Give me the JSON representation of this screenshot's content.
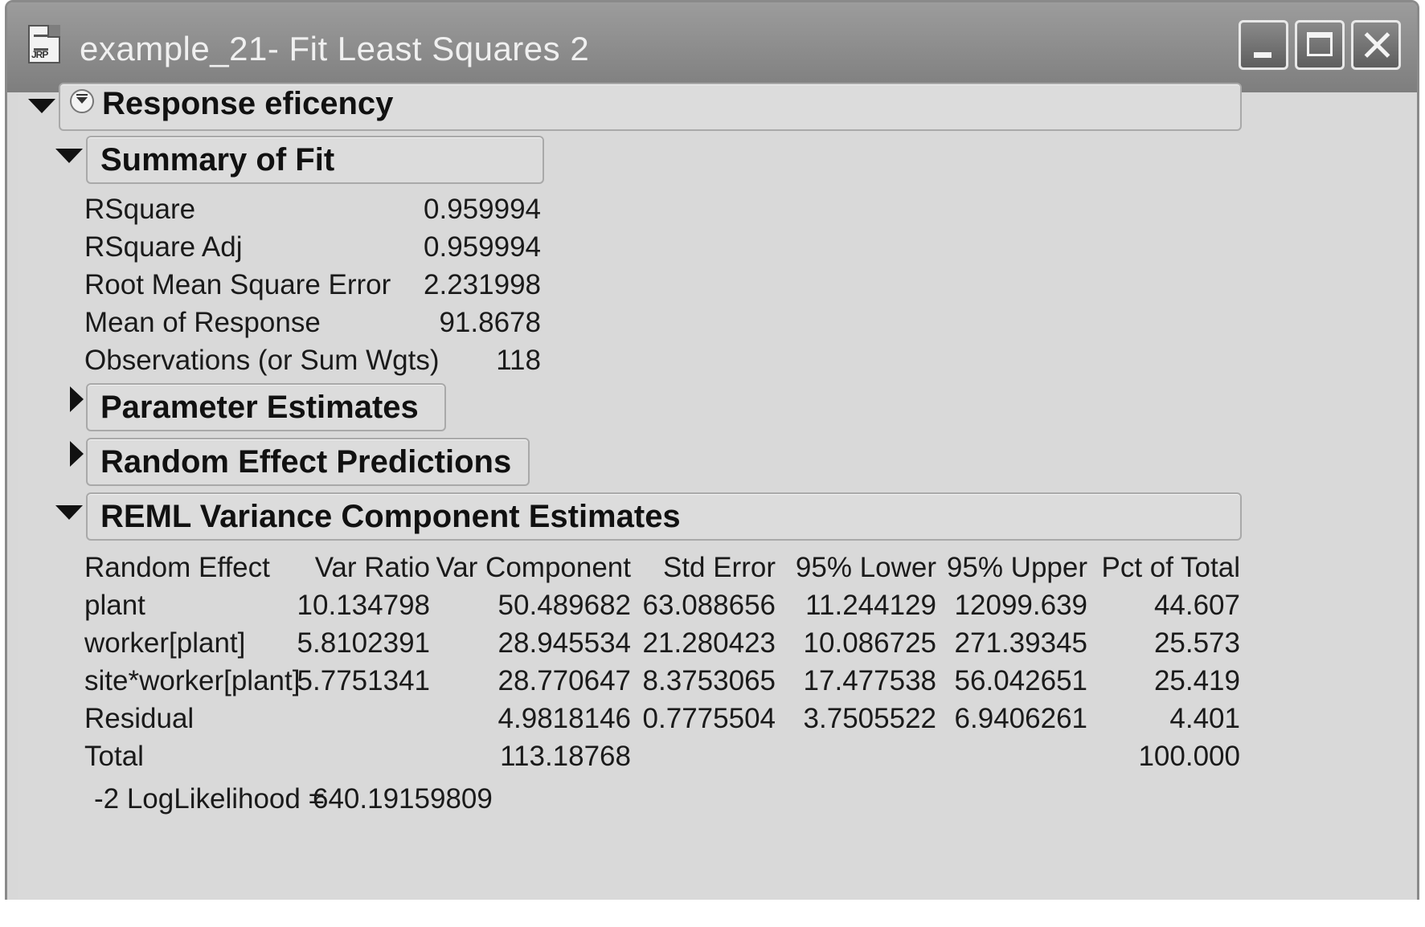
{
  "window": {
    "title": "example_21- Fit Least Squares 2",
    "icon": "jmp-report-icon",
    "buttons": [
      "minimize-icon",
      "maximize-icon",
      "close-icon"
    ],
    "icon_label": "JRP"
  },
  "report": {
    "title": "Response eficency",
    "summary_of_fit": {
      "title": "Summary of Fit",
      "rows": [
        {
          "label": "RSquare",
          "value": "0.959994"
        },
        {
          "label": "RSquare Adj",
          "value": "0.959994"
        },
        {
          "label": "Root Mean Square Error",
          "value": "2.231998"
        },
        {
          "label": "Mean of Response",
          "value": "91.8678"
        },
        {
          "label": "Observations (or Sum Wgts)",
          "value": "118"
        }
      ]
    },
    "parameter_estimates": {
      "title": "Parameter Estimates"
    },
    "random_effect_predictions": {
      "title": "Random Effect Predictions"
    },
    "reml": {
      "title": "REML Variance Component Estimates",
      "columns": [
        "Random Effect",
        "Var Ratio",
        "Var Component",
        "Std Error",
        "95% Lower",
        "95% Upper",
        "Pct of Total"
      ],
      "rows": [
        [
          "plant",
          "10.134798",
          "50.489682",
          "63.088656",
          "11.244129",
          "12099.639",
          "44.607"
        ],
        [
          "worker[plant]",
          "5.8102391",
          "28.945534",
          "21.280423",
          "10.086725",
          "271.39345",
          "25.573"
        ],
        [
          "site*worker[plant]",
          "5.7751341",
          "28.770647",
          "8.3753065",
          "17.477538",
          "56.042651",
          "25.419"
        ],
        [
          "Residual",
          "",
          "4.9818146",
          "0.7775504",
          "3.7505522",
          "6.9406261",
          "4.401"
        ],
        [
          "Total",
          "",
          "113.18768",
          "",
          "",
          "",
          "100.000"
        ]
      ],
      "loglik_label": "-2 LogLikelihood =",
      "loglik_value": "640.19159809"
    }
  }
}
